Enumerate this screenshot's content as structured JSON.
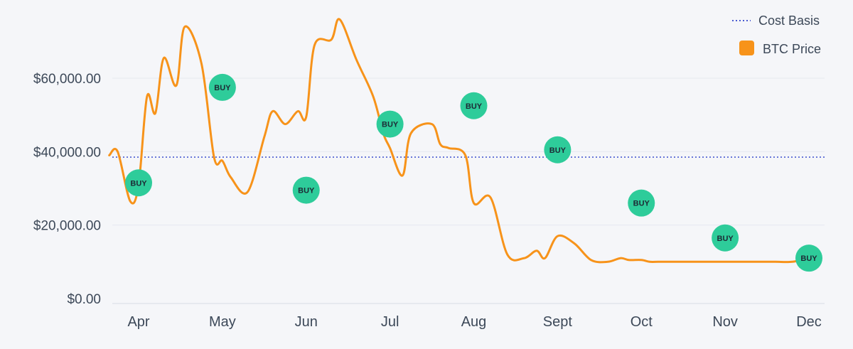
{
  "chart_data": {
    "type": "line",
    "title": "",
    "xlabel": "",
    "ylabel": "",
    "ylim": [
      0,
      80000
    ],
    "y_ticks": [
      {
        "value": 0,
        "label": "$0.00"
      },
      {
        "value": 20000,
        "label": "$20,000.00"
      },
      {
        "value": 40000,
        "label": "$40,000.00"
      },
      {
        "value": 60000,
        "label": "$60,000.00"
      }
    ],
    "categories": [
      "Apr",
      "May",
      "Jun",
      "Jul",
      "Aug",
      "Sept",
      "Oct",
      "Nov",
      "Dec"
    ],
    "grid": true,
    "legend_position": "top-right",
    "legend": [
      {
        "label": "Cost Basis",
        "style": "dotted-line",
        "color": "#4a5bd1"
      },
      {
        "label": "BTC Price",
        "style": "filled-square",
        "color": "#f7931a"
      }
    ],
    "cost_basis": 38500,
    "series": [
      {
        "name": "BTC Price",
        "color": "#f7931a",
        "x": [
          -0.35,
          -0.25,
          -0.1,
          0,
          0.1,
          0.2,
          0.3,
          0.45,
          0.55,
          0.75,
          0.9,
          1.0,
          1.1,
          1.3,
          1.5,
          1.6,
          1.75,
          1.9,
          2.0,
          2.1,
          2.3,
          2.4,
          2.6,
          2.8,
          2.92,
          3.0,
          3.15,
          3.25,
          3.5,
          3.6,
          3.7,
          3.9,
          4.0,
          4.2,
          4.4,
          4.6,
          4.75,
          4.85,
          5.0,
          5.2,
          5.4,
          5.6,
          5.75,
          5.85,
          6.0,
          6.1,
          6.2,
          6.35,
          6.5,
          6.6,
          6.7,
          6.85,
          7.0,
          7.2,
          7.4,
          7.6,
          7.8,
          8.0
        ],
        "y": [
          39000,
          40000,
          26500,
          31000,
          55000,
          50500,
          65500,
          58000,
          74000,
          64000,
          38500,
          37500,
          33000,
          29000,
          44000,
          51000,
          47500,
          51000,
          49500,
          69000,
          70500,
          76000,
          65000,
          55000,
          45000,
          41000,
          33500,
          45000,
          47500,
          42000,
          41000,
          39000,
          26000,
          27500,
          12000,
          11000,
          13000,
          11000,
          17000,
          15000,
          10500,
          10000,
          11000,
          10500,
          10500,
          10000,
          10000,
          10000,
          10000,
          10000,
          10000,
          10000,
          10000,
          10000,
          10000,
          10000,
          10000,
          11000
        ]
      }
    ],
    "buy_markers": [
      {
        "x": 0,
        "y": 31500,
        "label": "BUY"
      },
      {
        "x": 1,
        "y": 57500,
        "label": "BUY"
      },
      {
        "x": 2,
        "y": 29500,
        "label": "BUY"
      },
      {
        "x": 3,
        "y": 47500,
        "label": "BUY"
      },
      {
        "x": 4,
        "y": 52500,
        "label": "BUY"
      },
      {
        "x": 5,
        "y": 40500,
        "label": "BUY"
      },
      {
        "x": 6,
        "y": 26000,
        "label": "BUY"
      },
      {
        "x": 7,
        "y": 16500,
        "label": "BUY"
      },
      {
        "x": 8,
        "y": 11000,
        "label": "BUY"
      }
    ],
    "buy_marker_color": "#2ecc9a"
  }
}
